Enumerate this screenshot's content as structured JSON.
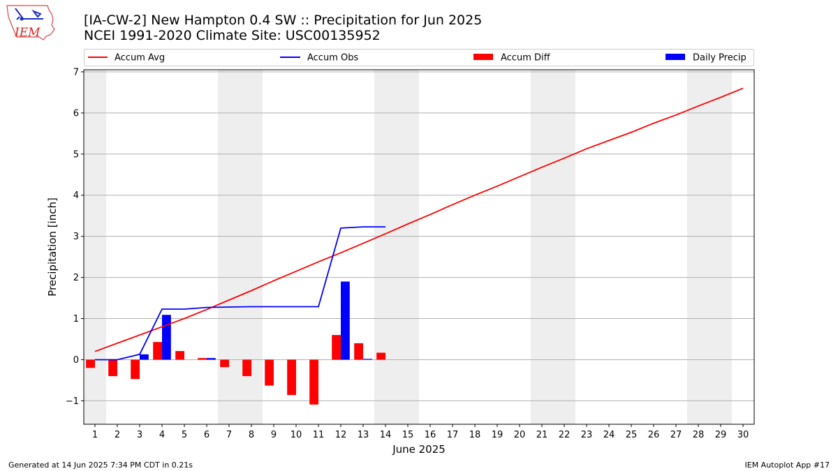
{
  "header": {
    "title_line1": "[IA-CW-2] New Hampton 0.4 SW :: Precipitation for Jun 2025",
    "title_line2": "NCEI 1991-2020 Climate Site: USC00135952"
  },
  "logo": {
    "text": "IEM"
  },
  "footer": {
    "generated": "Generated at 14 Jun 2025 7:34 PM CDT in 0.21s",
    "app": "IEM Autoplot App #17"
  },
  "colors": {
    "avg": "#ff0000",
    "obs": "#0000ff",
    "diff": "#ff0000",
    "daily": "#0000ff",
    "weekend_band": "#eeeeee",
    "grid": "#b0b0b0"
  },
  "chart_data": {
    "type": "bar",
    "xlabel": "June 2025",
    "ylabel": "Precipitation [inch]",
    "xlim": [
      0.5,
      30.5
    ],
    "ylim": [
      -1.57,
      7.05
    ],
    "grid": true,
    "legend_position": "top",
    "x": [
      1,
      2,
      3,
      4,
      5,
      6,
      7,
      8,
      9,
      10,
      11,
      12,
      13,
      14,
      15,
      16,
      17,
      18,
      19,
      20,
      21,
      22,
      23,
      24,
      25,
      26,
      27,
      28,
      29,
      30
    ],
    "x_tick_labels": [
      "1",
      "2",
      "3",
      "4",
      "5",
      "6",
      "7",
      "8",
      "9",
      "10",
      "11",
      "12",
      "13",
      "14",
      "15",
      "16",
      "17",
      "18",
      "19",
      "20",
      "21",
      "22",
      "23",
      "24",
      "25",
      "26",
      "27",
      "28",
      "29",
      "30"
    ],
    "y_ticks": [
      -1,
      0,
      1,
      2,
      3,
      4,
      5,
      6,
      7
    ],
    "y_tick_labels": [
      "−1",
      "0",
      "1",
      "2",
      "3",
      "4",
      "5",
      "6",
      "7"
    ],
    "weekend_bands": [
      [
        0.5,
        1.5
      ],
      [
        6.5,
        8.5
      ],
      [
        13.5,
        15.5
      ],
      [
        20.5,
        22.5
      ],
      [
        27.5,
        29.5
      ]
    ],
    "series": [
      {
        "name": "Accum Avg",
        "kind": "line",
        "x": [
          1,
          2,
          3,
          4,
          5,
          6,
          7,
          8,
          9,
          10,
          11,
          12,
          13,
          14,
          15,
          16,
          17,
          18,
          19,
          20,
          21,
          22,
          23,
          24,
          25,
          26,
          27,
          28,
          29,
          30
        ],
        "values": [
          0.2,
          0.4,
          0.6,
          0.8,
          1.0,
          1.22,
          1.45,
          1.68,
          1.92,
          2.15,
          2.38,
          2.6,
          2.83,
          3.06,
          3.3,
          3.53,
          3.77,
          4.0,
          4.22,
          4.45,
          4.68,
          4.9,
          5.13,
          5.33,
          5.53,
          5.75,
          5.95,
          6.17,
          6.38,
          6.6
        ]
      },
      {
        "name": "Accum Obs",
        "kind": "line",
        "x": [
          1,
          2,
          3,
          4,
          5,
          6,
          7,
          8,
          9,
          10,
          11,
          12,
          13,
          14
        ],
        "values": [
          0.0,
          0.0,
          0.13,
          1.23,
          1.23,
          1.27,
          1.28,
          1.29,
          1.29,
          1.29,
          1.29,
          3.2,
          3.23,
          3.23
        ]
      },
      {
        "name": "Accum Diff",
        "kind": "bar",
        "x": [
          1,
          2,
          3,
          4,
          5,
          6,
          7,
          8,
          9,
          10,
          11,
          12,
          13,
          14
        ],
        "values": [
          -0.2,
          -0.4,
          -0.47,
          0.43,
          0.21,
          0.04,
          -0.18,
          -0.4,
          -0.63,
          -0.86,
          -1.09,
          0.6,
          0.4,
          0.17
        ]
      },
      {
        "name": "Daily Precip",
        "kind": "bar",
        "x": [
          1,
          2,
          3,
          4,
          5,
          6,
          7,
          8,
          9,
          10,
          11,
          12,
          13,
          14
        ],
        "values": [
          0.0,
          0.0,
          0.13,
          1.09,
          0.0,
          0.04,
          0.0,
          0.0,
          0.0,
          0.0,
          0.0,
          1.9,
          0.02,
          0.0
        ]
      }
    ]
  }
}
